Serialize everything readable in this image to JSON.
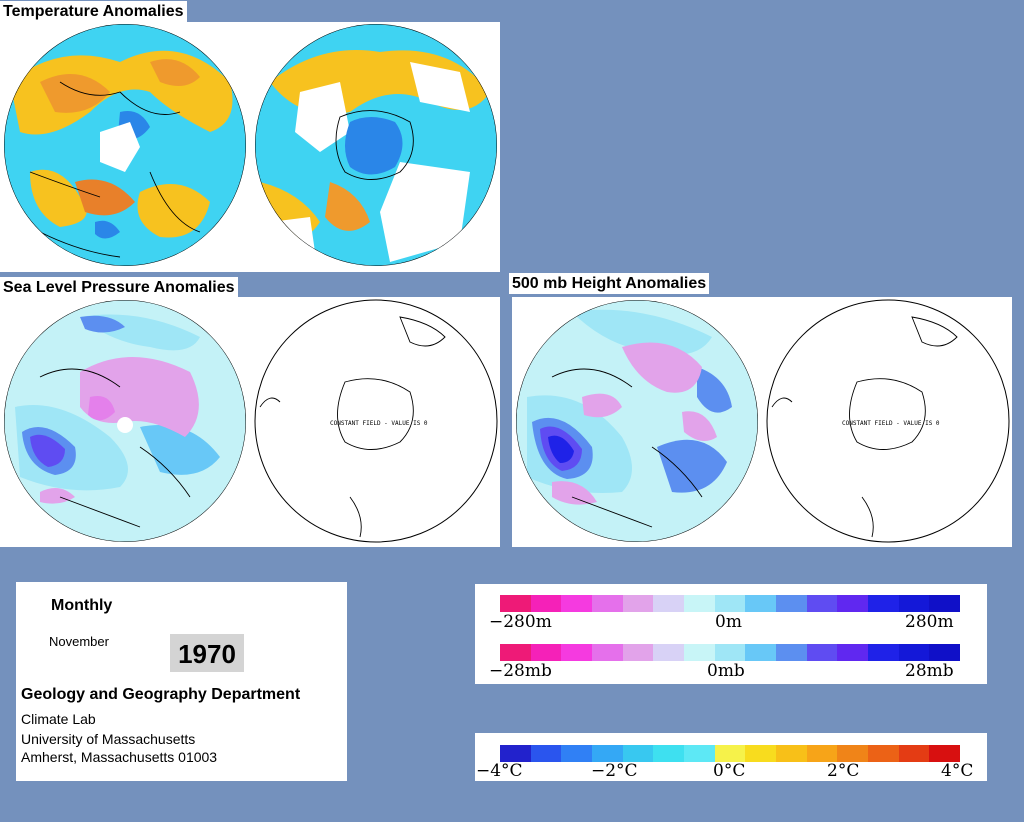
{
  "titles": {
    "temperature": "Temperature Anomalies",
    "slp": "Sea Level Pressure Anomalies",
    "height500": "500 mb Height Anomalies"
  },
  "globes": {
    "constant_field_label": "CONSTANT FIELD - VALUE IS 0"
  },
  "info": {
    "period": "Monthly",
    "month": "November",
    "year": "1970",
    "department": "Geology and Geography Department",
    "lab": "Climate Lab",
    "university": "University of Massachusetts",
    "address": "Amherst, Massachusetts 01003"
  },
  "legends": {
    "height": {
      "min": "−280m",
      "mid": "0m",
      "max": "280m"
    },
    "pressure": {
      "min": "−28mb",
      "mid": "0mb",
      "max": "28mb"
    },
    "temperature": {
      "t1": "−4°C",
      "t2": "−2°C",
      "t3": "0°C",
      "t4": "2°C",
      "t5": "4°C"
    }
  },
  "colors": {
    "background": "#7491bd",
    "ocean_cyan": "#3fd3f2",
    "warm_yellow": "#f7c21f",
    "warm_orange": "#ef9a2d",
    "pale_cyan": "#c4f2f7",
    "neg_blue": "#4070dd",
    "pos_pink": "#e3a4e6",
    "pressure_scale": [
      "#ee1a77",
      "#f521b8",
      "#f53ae0",
      "#e570eb",
      "#e2a3ea",
      "#d8d2f6",
      "#c8f5f7",
      "#9fe6f6",
      "#68c8f7",
      "#5c8ff0",
      "#5f4cf2",
      "#6028f0",
      "#1f22e8",
      "#1418d8",
      "#1010c8"
    ],
    "temperature_scale": [
      "#2222cc",
      "#2a55ee",
      "#3080f5",
      "#34a8f5",
      "#38c8f0",
      "#3ee0f0",
      "#5de8f5",
      "#f6f24a",
      "#f8dc1e",
      "#f8c018",
      "#f7a418",
      "#f08418",
      "#ec6216",
      "#e43c14",
      "#d81010"
    ]
  }
}
